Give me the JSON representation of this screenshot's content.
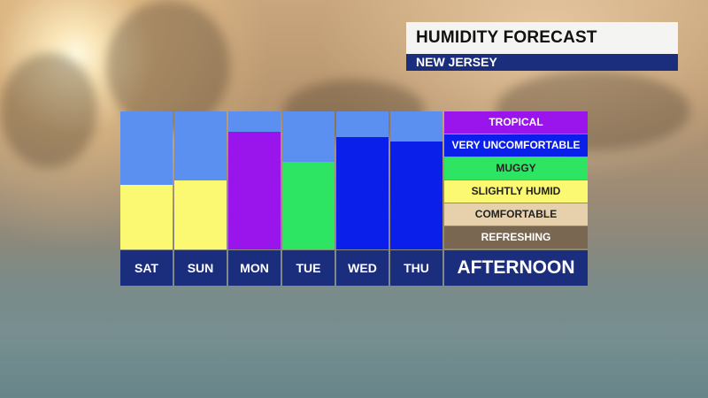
{
  "header": {
    "title": "HUMIDITY FORECAST",
    "region": "NEW JERSEY"
  },
  "footer_label": "AFTERNOON",
  "chart_data": {
    "type": "bar",
    "title": "HUMIDITY FORECAST",
    "subtitle": "NEW JERSEY",
    "xlabel": "AFTERNOON",
    "categories": [
      "SAT",
      "SUN",
      "MON",
      "TUE",
      "WED",
      "THU"
    ],
    "scale": [
      "REFRESHING",
      "COMFORTABLE",
      "SLIGHTLY HUMID",
      "MUGGY",
      "VERY UNCOMFORTABLE",
      "TROPICAL"
    ],
    "values": [
      2.8,
      3.0,
      5.1,
      3.8,
      4.9,
      4.7
    ],
    "value_categories": [
      "SLIGHTLY HUMID",
      "SLIGHTLY HUMID",
      "TROPICAL",
      "MUGGY",
      "VERY UNCOMFORTABLE",
      "VERY UNCOMFORTABLE"
    ],
    "ylim": [
      0,
      6
    ],
    "colors": {
      "TROPICAL": "#9a14ec",
      "VERY UNCOMFORTABLE": "#0b1fea",
      "MUGGY": "#2ee563",
      "SLIGHTLY HUMID": "#fbf971",
      "COMFORTABLE": "#e7d1ad",
      "REFRESHING": "#7a6751",
      "background": "#5b8ff0",
      "label_bar": "#1b2e7e"
    },
    "legend_text_colors": {
      "TROPICAL": "#ffffff",
      "VERY UNCOMFORTABLE": "#ffffff",
      "MUGGY": "#222222",
      "SLIGHTLY HUMID": "#222222",
      "COMFORTABLE": "#222222",
      "REFRESHING": "#ffffff"
    }
  }
}
